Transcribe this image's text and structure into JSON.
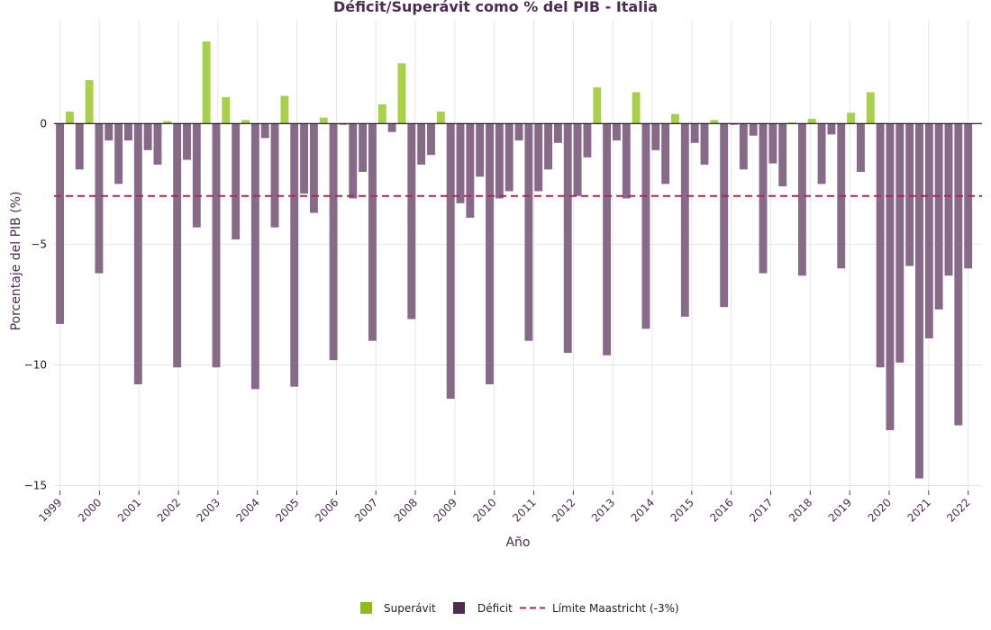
{
  "chart_data": {
    "type": "bar",
    "title": "Déficit/Superávit como % del PIB - Italia",
    "xlabel": "Año",
    "ylabel": "Porcentaje del PIB (%)",
    "ylim": [
      -15.2,
      4.3
    ],
    "yticks": [
      0,
      -5,
      -10,
      -15
    ],
    "ytick_labels": [
      "0",
      "−5",
      "−10",
      "−15"
    ],
    "x_range": [
      1998.85,
      2022.35
    ],
    "xticks": [
      1999,
      2000,
      2001,
      2002,
      2003,
      2004,
      2005,
      2006,
      2007,
      2008,
      2009,
      2010,
      2011,
      2012,
      2013,
      2014,
      2015,
      2016,
      2017,
      2018,
      2019,
      2020,
      2021,
      2022
    ],
    "xtick_labels": [
      "1999",
      "2000",
      "2001",
      "2002",
      "2003",
      "2004",
      "2005",
      "2006",
      "2007",
      "2008",
      "2009",
      "2010",
      "2011",
      "2012",
      "2013",
      "2014",
      "2015",
      "2016",
      "2017",
      "2018",
      "2019",
      "2020",
      "2021",
      "2022"
    ],
    "grid": true,
    "legend_position": "bottom-center",
    "colors": {
      "surplus": "#a8d04a",
      "deficit": "#876a87",
      "limit_line": "#b0245f",
      "zero_line": "#111111",
      "grid": "#e6e6e6",
      "legend_surplus": "#8fbc1a",
      "legend_deficit": "#4d2c4f"
    },
    "series": [
      {
        "name": "Superávit",
        "key": "surplus"
      },
      {
        "name": "Déficit",
        "key": "deficit"
      },
      {
        "name": "Límite Maastricht (-3%)",
        "key": "limit",
        "value": -3
      }
    ],
    "values": [
      -8.3,
      0.5,
      -1.9,
      1.8,
      -6.2,
      -0.7,
      -2.5,
      -0.7,
      -10.8,
      -1.1,
      -1.7,
      0.1,
      -10.1,
      -1.5,
      -4.3,
      3.4,
      -10.1,
      1.1,
      -4.8,
      0.15,
      -11.0,
      -0.6,
      -4.3,
      1.15,
      -10.9,
      -2.9,
      -3.7,
      0.25,
      -9.8,
      -0.05,
      -3.1,
      -2.0,
      -9.0,
      0.8,
      -0.35,
      2.5,
      -8.1,
      -1.7,
      -1.3,
      0.5,
      -11.4,
      -3.3,
      -3.9,
      -2.2,
      -10.8,
      -3.1,
      -2.8,
      -0.7,
      -9.0,
      -2.8,
      -1.9,
      -0.8,
      -9.5,
      -3.0,
      -1.4,
      1.5,
      -9.6,
      -0.7,
      -3.1,
      1.3,
      -8.5,
      -1.1,
      -2.5,
      0.4,
      -8.0,
      -0.8,
      -1.7,
      0.15,
      -7.6,
      -0.05,
      -1.9,
      -0.5,
      -6.2,
      -1.65,
      -2.6,
      0.05,
      -6.3,
      0.2,
      -2.5,
      -0.45,
      -6.0,
      0.45,
      -2.0,
      1.3,
      -10.1,
      -12.7,
      -9.9,
      -5.9,
      -14.7,
      -8.9,
      -7.7,
      -6.3,
      -12.5,
      -6.0
    ]
  }
}
